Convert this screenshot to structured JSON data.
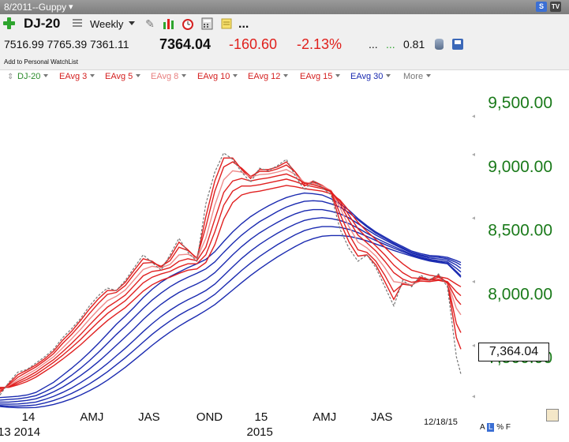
{
  "window": {
    "title": "8/2011--Guppy",
    "title_arrow": "▾",
    "badge_s": "S",
    "badge_tv": "TV"
  },
  "toolbar": {
    "symbol": "DJ-20",
    "frequency": "Weekly",
    "more": "...",
    "open": "7516.99",
    "high": "7765.39",
    "low": "7361.11",
    "last": "7364.04",
    "change": "-160.60",
    "change_pct": "-2.13%",
    "dots1": "...",
    "dots2": "...",
    "ratio": "0.81",
    "add_watchlist": "Add to Personal WatchList",
    "colors": {
      "negative": "#e0201c",
      "positive": "#2ea52e"
    }
  },
  "legend": {
    "items": [
      {
        "label": "DJ-20",
        "color": "#2a8a2a"
      },
      {
        "label": "EAvg 3",
        "color": "#d42020"
      },
      {
        "label": "EAvg 5",
        "color": "#d42020"
      },
      {
        "label": "EAvg 8",
        "color": "#e87f7f"
      },
      {
        "label": "EAvg 10",
        "color": "#d42020"
      },
      {
        "label": "EAvg 12",
        "color": "#d42020"
      },
      {
        "label": "EAvg 15",
        "color": "#d42020"
      },
      {
        "label": "EAvg 30",
        "color": "#1a2ab0"
      },
      {
        "label": "More",
        "color": "#777777"
      }
    ]
  },
  "chart_data": {
    "type": "line",
    "title": "",
    "xlabel": "",
    "ylabel": "",
    "ylim": [
      7110,
      9650
    ],
    "y_ticks": [
      9500,
      9000,
      8500,
      8000,
      7500
    ],
    "y_tick_labels": [
      "9,500.00",
      "9,000.00",
      "8,500.00",
      "8,000.00",
      "7,500.00"
    ],
    "x_tick_labels": [
      {
        "label": "14",
        "x": 2
      },
      {
        "label": "AMJ",
        "x": 15
      },
      {
        "label": "JAS",
        "x": 28
      },
      {
        "label": "OND",
        "x": 41
      },
      {
        "label": "15",
        "x": 54
      },
      {
        "label": "AMJ",
        "x": 67
      },
      {
        "label": "JAS",
        "x": 80
      }
    ],
    "x_sub_labels": [
      {
        "label": "13",
        "x": -2
      },
      {
        "label": "2014",
        "x": 2
      },
      {
        "label": "2015",
        "x": 54
      }
    ],
    "date_label": "12/18/15",
    "price_label": "7,364.04",
    "price_color": "#777777",
    "short_color": "#e02020",
    "long_color": "#1a2ab0",
    "x": [
      -2,
      0,
      2,
      4,
      6,
      8,
      10,
      12,
      14,
      16,
      18,
      20,
      22,
      24,
      26,
      28,
      30,
      32,
      34,
      36,
      38,
      40,
      42,
      44,
      46,
      48,
      50,
      52,
      54,
      56,
      58,
      60,
      62,
      64,
      66,
      68,
      70,
      72,
      74,
      76,
      78,
      80,
      82,
      84,
      86,
      88,
      90,
      92,
      94,
      96,
      98,
      100,
      101
    ],
    "series": [
      {
        "name": "DJ-20",
        "values": [
          7200,
          7300,
          7380,
          7400,
          7450,
          7500,
          7560,
          7650,
          7720,
          7800,
          7900,
          7980,
          8040,
          8020,
          8100,
          8200,
          8300,
          8240,
          8180,
          8300,
          8430,
          8320,
          8250,
          8700,
          8950,
          9100,
          9050,
          8950,
          8870,
          8980,
          8960,
          9000,
          9050,
          8920,
          8810,
          8880,
          8830,
          8770,
          8500,
          8350,
          8250,
          8300,
          8200,
          8050,
          7900,
          8100,
          8050,
          8140,
          8100,
          8150,
          8050,
          7500,
          7364
        ]
      }
    ],
    "short_term_emas": [
      {
        "name": "EAvg 3",
        "values": [
          7220,
          7290,
          7360,
          7395,
          7435,
          7485,
          7545,
          7630,
          7700,
          7785,
          7875,
          7955,
          8020,
          8020,
          8085,
          8180,
          8270,
          8250,
          8200,
          8280,
          8400,
          8340,
          8270,
          8600,
          8880,
          9060,
          9060,
          8970,
          8900,
          8970,
          8970,
          8990,
          9030,
          8950,
          8840,
          8880,
          8845,
          8790,
          8560,
          8400,
          8290,
          8300,
          8220,
          8090,
          7950,
          8080,
          8060,
          8125,
          8105,
          8140,
          8075,
          7650,
          7560
        ]
      },
      {
        "name": "EAvg 5",
        "values": [
          7235,
          7280,
          7340,
          7380,
          7420,
          7470,
          7525,
          7605,
          7675,
          7755,
          7840,
          7920,
          7990,
          8005,
          8060,
          8150,
          8235,
          8240,
          8210,
          8255,
          8360,
          8335,
          8275,
          8520,
          8800,
          8990,
          9030,
          8980,
          8915,
          8955,
          8955,
          8975,
          9005,
          8950,
          8860,
          8870,
          8845,
          8800,
          8620,
          8460,
          8340,
          8320,
          8250,
          8140,
          8010,
          8070,
          8060,
          8110,
          8100,
          8125,
          8085,
          7760,
          7690
        ]
      },
      {
        "name": "EAvg 8",
        "values": [
          7245,
          7270,
          7320,
          7360,
          7400,
          7450,
          7500,
          7570,
          7640,
          7715,
          7795,
          7870,
          7940,
          7975,
          8025,
          8105,
          8185,
          8210,
          8200,
          8225,
          8300,
          8305,
          8270,
          8430,
          8690,
          8890,
          8960,
          8950,
          8910,
          8930,
          8935,
          8950,
          8970,
          8930,
          8870,
          8860,
          8840,
          8805,
          8670,
          8520,
          8400,
          8355,
          8290,
          8200,
          8090,
          8080,
          8065,
          8095,
          8090,
          8110,
          8085,
          7880,
          7830
        ]
      },
      {
        "name": "EAvg 10",
        "values": [
          7250,
          7265,
          7305,
          7340,
          7380,
          7430,
          7478,
          7540,
          7605,
          7675,
          7750,
          7822,
          7890,
          7935,
          7985,
          8060,
          8135,
          8170,
          8180,
          8200,
          8250,
          8270,
          8255,
          8360,
          8580,
          8790,
          8880,
          8900,
          8880,
          8895,
          8905,
          8920,
          8935,
          8905,
          8865,
          8850,
          8830,
          8800,
          8700,
          8570,
          8455,
          8395,
          8330,
          8250,
          8160,
          8110,
          8085,
          8095,
          8090,
          8100,
          8085,
          7950,
          7910
        ]
      },
      {
        "name": "EAvg 12",
        "values": [
          7255,
          7262,
          7292,
          7322,
          7360,
          7408,
          7456,
          7512,
          7572,
          7636,
          7706,
          7774,
          7840,
          7890,
          7940,
          8010,
          8080,
          8125,
          8150,
          8170,
          8205,
          8230,
          8230,
          8300,
          8480,
          8690,
          8800,
          8840,
          8840,
          8850,
          8865,
          8880,
          8895,
          8875,
          8850,
          8835,
          8820,
          8795,
          8720,
          8610,
          8505,
          8435,
          8370,
          8300,
          8220,
          8160,
          8120,
          8115,
          8105,
          8105,
          8090,
          8010,
          7980
        ]
      },
      {
        "name": "EAvg 15",
        "values": [
          7260,
          7260,
          7280,
          7305,
          7340,
          7385,
          7430,
          7482,
          7536,
          7594,
          7658,
          7722,
          7784,
          7836,
          7886,
          7950,
          8015,
          8065,
          8100,
          8125,
          8155,
          8180,
          8190,
          8240,
          8380,
          8580,
          8710,
          8770,
          8790,
          8800,
          8815,
          8830,
          8845,
          8835,
          8820,
          8810,
          8800,
          8780,
          8730,
          8645,
          8555,
          8485,
          8420,
          8360,
          8290,
          8230,
          8180,
          8160,
          8140,
          8130,
          8115,
          8070,
          8050
        ]
      }
    ],
    "long_term_emas": [
      {
        "name": "EAvg 30 (a)",
        "values": [
          7180,
          7185,
          7190,
          7200,
          7220,
          7260,
          7300,
          7355,
          7410,
          7470,
          7535,
          7605,
          7680,
          7755,
          7820,
          7890,
          7965,
          8030,
          8085,
          8130,
          8165,
          8200,
          8230,
          8265,
          8325,
          8405,
          8480,
          8545,
          8600,
          8645,
          8685,
          8720,
          8750,
          8770,
          8785,
          8780,
          8770,
          8740,
          8700,
          8650,
          8585,
          8530,
          8480,
          8440,
          8400,
          8365,
          8330,
          8310,
          8295,
          8290,
          8280,
          8255,
          8240
        ]
      },
      {
        "name": "EAvg 30 (b)",
        "values": [
          7160,
          7165,
          7170,
          7180,
          7195,
          7225,
          7260,
          7305,
          7355,
          7410,
          7470,
          7535,
          7605,
          7675,
          7740,
          7810,
          7880,
          7945,
          8000,
          8050,
          8090,
          8125,
          8155,
          8190,
          8245,
          8320,
          8390,
          8455,
          8510,
          8560,
          8600,
          8640,
          8675,
          8700,
          8720,
          8725,
          8720,
          8700,
          8675,
          8630,
          8575,
          8520,
          8470,
          8430,
          8390,
          8355,
          8320,
          8300,
          8285,
          8280,
          8270,
          8240,
          8220
        ]
      },
      {
        "name": "EAvg 30 (c)",
        "values": [
          7145,
          7145,
          7150,
          7158,
          7170,
          7195,
          7225,
          7262,
          7305,
          7353,
          7405,
          7462,
          7525,
          7590,
          7655,
          7722,
          7792,
          7855,
          7912,
          7962,
          8005,
          8040,
          8072,
          8108,
          8160,
          8230,
          8300,
          8365,
          8422,
          8472,
          8515,
          8555,
          8592,
          8622,
          8645,
          8655,
          8655,
          8642,
          8622,
          8590,
          8545,
          8500,
          8455,
          8418,
          8382,
          8348,
          8315,
          8292,
          8275,
          8268,
          8258,
          8220,
          8195
        ]
      },
      {
        "name": "EAvg 30 (d)",
        "values": [
          7130,
          7128,
          7130,
          7136,
          7145,
          7165,
          7190,
          7220,
          7255,
          7297,
          7342,
          7392,
          7447,
          7507,
          7567,
          7631,
          7697,
          7760,
          7816,
          7866,
          7910,
          7948,
          7982,
          8020,
          8070,
          8138,
          8206,
          8272,
          8330,
          8382,
          8428,
          8470,
          8508,
          8542,
          8570,
          8585,
          8592,
          8585,
          8570,
          8545,
          8510,
          8470,
          8432,
          8398,
          8365,
          8335,
          8305,
          8282,
          8265,
          8255,
          8245,
          8195,
          8165
        ]
      },
      {
        "name": "EAvg 30 (e)",
        "values": [
          7118,
          7114,
          7113,
          7116,
          7122,
          7137,
          7157,
          7182,
          7212,
          7248,
          7288,
          7333,
          7382,
          7437,
          7493,
          7553,
          7615,
          7676,
          7731,
          7781,
          7826,
          7866,
          7902,
          7942,
          7990,
          8052,
          8115,
          8178,
          8235,
          8288,
          8335,
          8380,
          8420,
          8458,
          8490,
          8510,
          8522,
          8522,
          8515,
          8500,
          8475,
          8445,
          8412,
          8382,
          8352,
          8325,
          8298,
          8275,
          8258,
          8246,
          8235,
          8170,
          8135
        ]
      },
      {
        "name": "EAvg 30 (f)",
        "values": [
          7110,
          7104,
          7100,
          7100,
          7102,
          7112,
          7126,
          7146,
          7170,
          7200,
          7234,
          7272,
          7316,
          7366,
          7418,
          7474,
          7532,
          7590,
          7644,
          7694,
          7740,
          7782,
          7822,
          7864,
          7910,
          7966,
          8024,
          8082,
          8138,
          8190,
          8238,
          8284,
          8326,
          8366,
          8402,
          8428,
          8446,
          8452,
          8452,
          8445,
          8430,
          8410,
          8385,
          8360,
          8335,
          8312,
          8290,
          8270,
          8252,
          8240,
          8230,
          8160,
          8125
        ]
      }
    ]
  }
}
